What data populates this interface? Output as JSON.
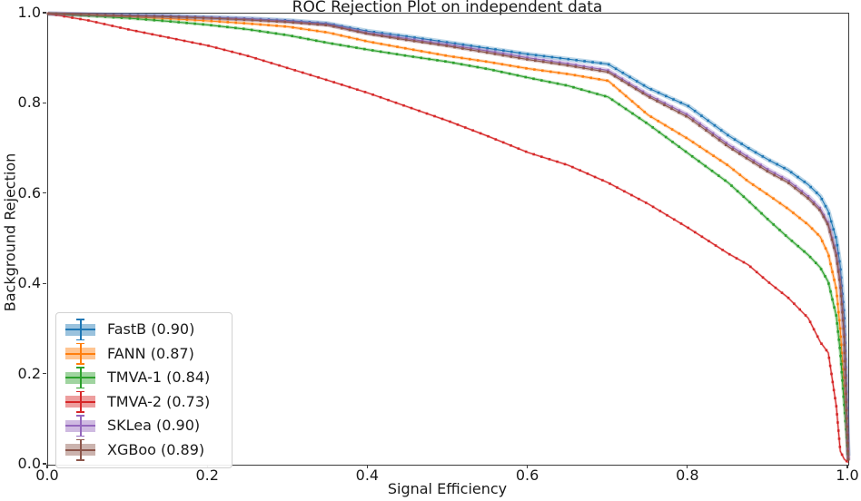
{
  "figure": {
    "title": "ROC Rejection Plot on independent data",
    "xlabel": "Signal Efficiency",
    "ylabel": "Background Rejection"
  },
  "axes": {
    "x_ticks": [
      {
        "value": 0.0,
        "label": "0.0"
      },
      {
        "value": 0.2,
        "label": "0.2"
      },
      {
        "value": 0.4,
        "label": "0.4"
      },
      {
        "value": 0.6,
        "label": "0.6"
      },
      {
        "value": 0.8,
        "label": "0.8"
      },
      {
        "value": 1.0,
        "label": "1.0"
      }
    ],
    "y_ticks": [
      {
        "value": 0.0,
        "label": "0.0"
      },
      {
        "value": 0.2,
        "label": "0.2"
      },
      {
        "value": 0.4,
        "label": "0.4"
      },
      {
        "value": 0.6,
        "label": "0.6"
      },
      {
        "value": 0.8,
        "label": "0.8"
      },
      {
        "value": 1.0,
        "label": "1.0"
      }
    ],
    "spine_color": "#3c3c3c"
  },
  "legend": {
    "position": "lower left",
    "entries": [
      {
        "label": "FastB (0.90)",
        "color": "#1f77b4"
      },
      {
        "label": "FANN (0.87)",
        "color": "#ff7f0e"
      },
      {
        "label": "TMVA-1 (0.84)",
        "color": "#2ca02c"
      },
      {
        "label": "TMVA-2 (0.73)",
        "color": "#d62728"
      },
      {
        "label": "SKLea (0.90)",
        "color": "#9467bd"
      },
      {
        "label": "XGBoo (0.89)",
        "color": "#8c564b"
      }
    ]
  },
  "chart_data": {
    "type": "line",
    "title": "ROC Rejection Plot on independent data",
    "xlabel": "Signal Efficiency",
    "ylabel": "Background Rejection",
    "xlim": [
      0.0,
      1.0
    ],
    "ylim": [
      0.0,
      1.0
    ],
    "grid": false,
    "legend_position": "lower left",
    "x": [
      0,
      0.05,
      0.1,
      0.15,
      0.2,
      0.25,
      0.3,
      0.35,
      0.4,
      0.45,
      0.5,
      0.55,
      0.6,
      0.65,
      0.7,
      0.75,
      0.8,
      0.85,
      0.875,
      0.9,
      0.925,
      0.95,
      0.965,
      0.975,
      0.985,
      0.99,
      0.995,
      1.0
    ],
    "series": [
      {
        "name": "FastB",
        "auc": 0.9,
        "color": "#1f77b4",
        "band_width": 5,
        "values": [
          1.0,
          0.998,
          0.997,
          0.995,
          0.992,
          0.989,
          0.985,
          0.978,
          0.961,
          0.949,
          0.936,
          0.923,
          0.91,
          0.899,
          0.888,
          0.835,
          0.795,
          0.73,
          0.702,
          0.676,
          0.653,
          0.621,
          0.595,
          0.562,
          0.5,
          0.44,
          0.33,
          0.02
        ]
      },
      {
        "name": "FANN",
        "auc": 0.87,
        "color": "#ff7f0e",
        "band_width": 3.5,
        "values": [
          1.0,
          0.997,
          0.993,
          0.989,
          0.984,
          0.978,
          0.971,
          0.958,
          0.938,
          0.922,
          0.906,
          0.893,
          0.878,
          0.866,
          0.851,
          0.775,
          0.722,
          0.663,
          0.628,
          0.598,
          0.567,
          0.532,
          0.505,
          0.467,
          0.39,
          0.3,
          0.17,
          0.01
        ]
      },
      {
        "name": "TMVA-1",
        "auc": 0.84,
        "color": "#2ca02c",
        "band_width": 3.5,
        "values": [
          1.0,
          0.995,
          0.99,
          0.983,
          0.975,
          0.965,
          0.952,
          0.935,
          0.92,
          0.906,
          0.893,
          0.877,
          0.858,
          0.84,
          0.815,
          0.755,
          0.69,
          0.625,
          0.585,
          0.543,
          0.503,
          0.465,
          0.437,
          0.405,
          0.33,
          0.25,
          0.13,
          0.01
        ]
      },
      {
        "name": "TMVA-2",
        "auc": 0.73,
        "color": "#d62728",
        "band_width": 2.5,
        "values": [
          1.0,
          0.985,
          0.965,
          0.947,
          0.929,
          0.906,
          0.879,
          0.852,
          0.824,
          0.793,
          0.762,
          0.728,
          0.692,
          0.664,
          0.625,
          0.578,
          0.525,
          0.468,
          0.443,
          0.405,
          0.37,
          0.325,
          0.272,
          0.248,
          0.13,
          0.03,
          0.012,
          0.005
        ]
      },
      {
        "name": "SKLea",
        "auc": 0.9,
        "color": "#9467bd",
        "band_width": 5,
        "values": [
          1.0,
          0.998,
          0.996,
          0.994,
          0.991,
          0.988,
          0.983,
          0.976,
          0.957,
          0.944,
          0.931,
          0.917,
          0.902,
          0.889,
          0.874,
          0.82,
          0.775,
          0.71,
          0.682,
          0.654,
          0.63,
          0.595,
          0.568,
          0.535,
          0.468,
          0.405,
          0.285,
          0.01
        ]
      },
      {
        "name": "XGBoo",
        "auc": 0.89,
        "color": "#8c564b",
        "band_width": 4,
        "values": [
          1.0,
          0.998,
          0.995,
          0.993,
          0.99,
          0.986,
          0.981,
          0.974,
          0.955,
          0.941,
          0.928,
          0.913,
          0.898,
          0.885,
          0.87,
          0.816,
          0.77,
          0.705,
          0.677,
          0.649,
          0.625,
          0.59,
          0.563,
          0.53,
          0.463,
          0.399,
          0.28,
          0.008
        ]
      }
    ]
  }
}
